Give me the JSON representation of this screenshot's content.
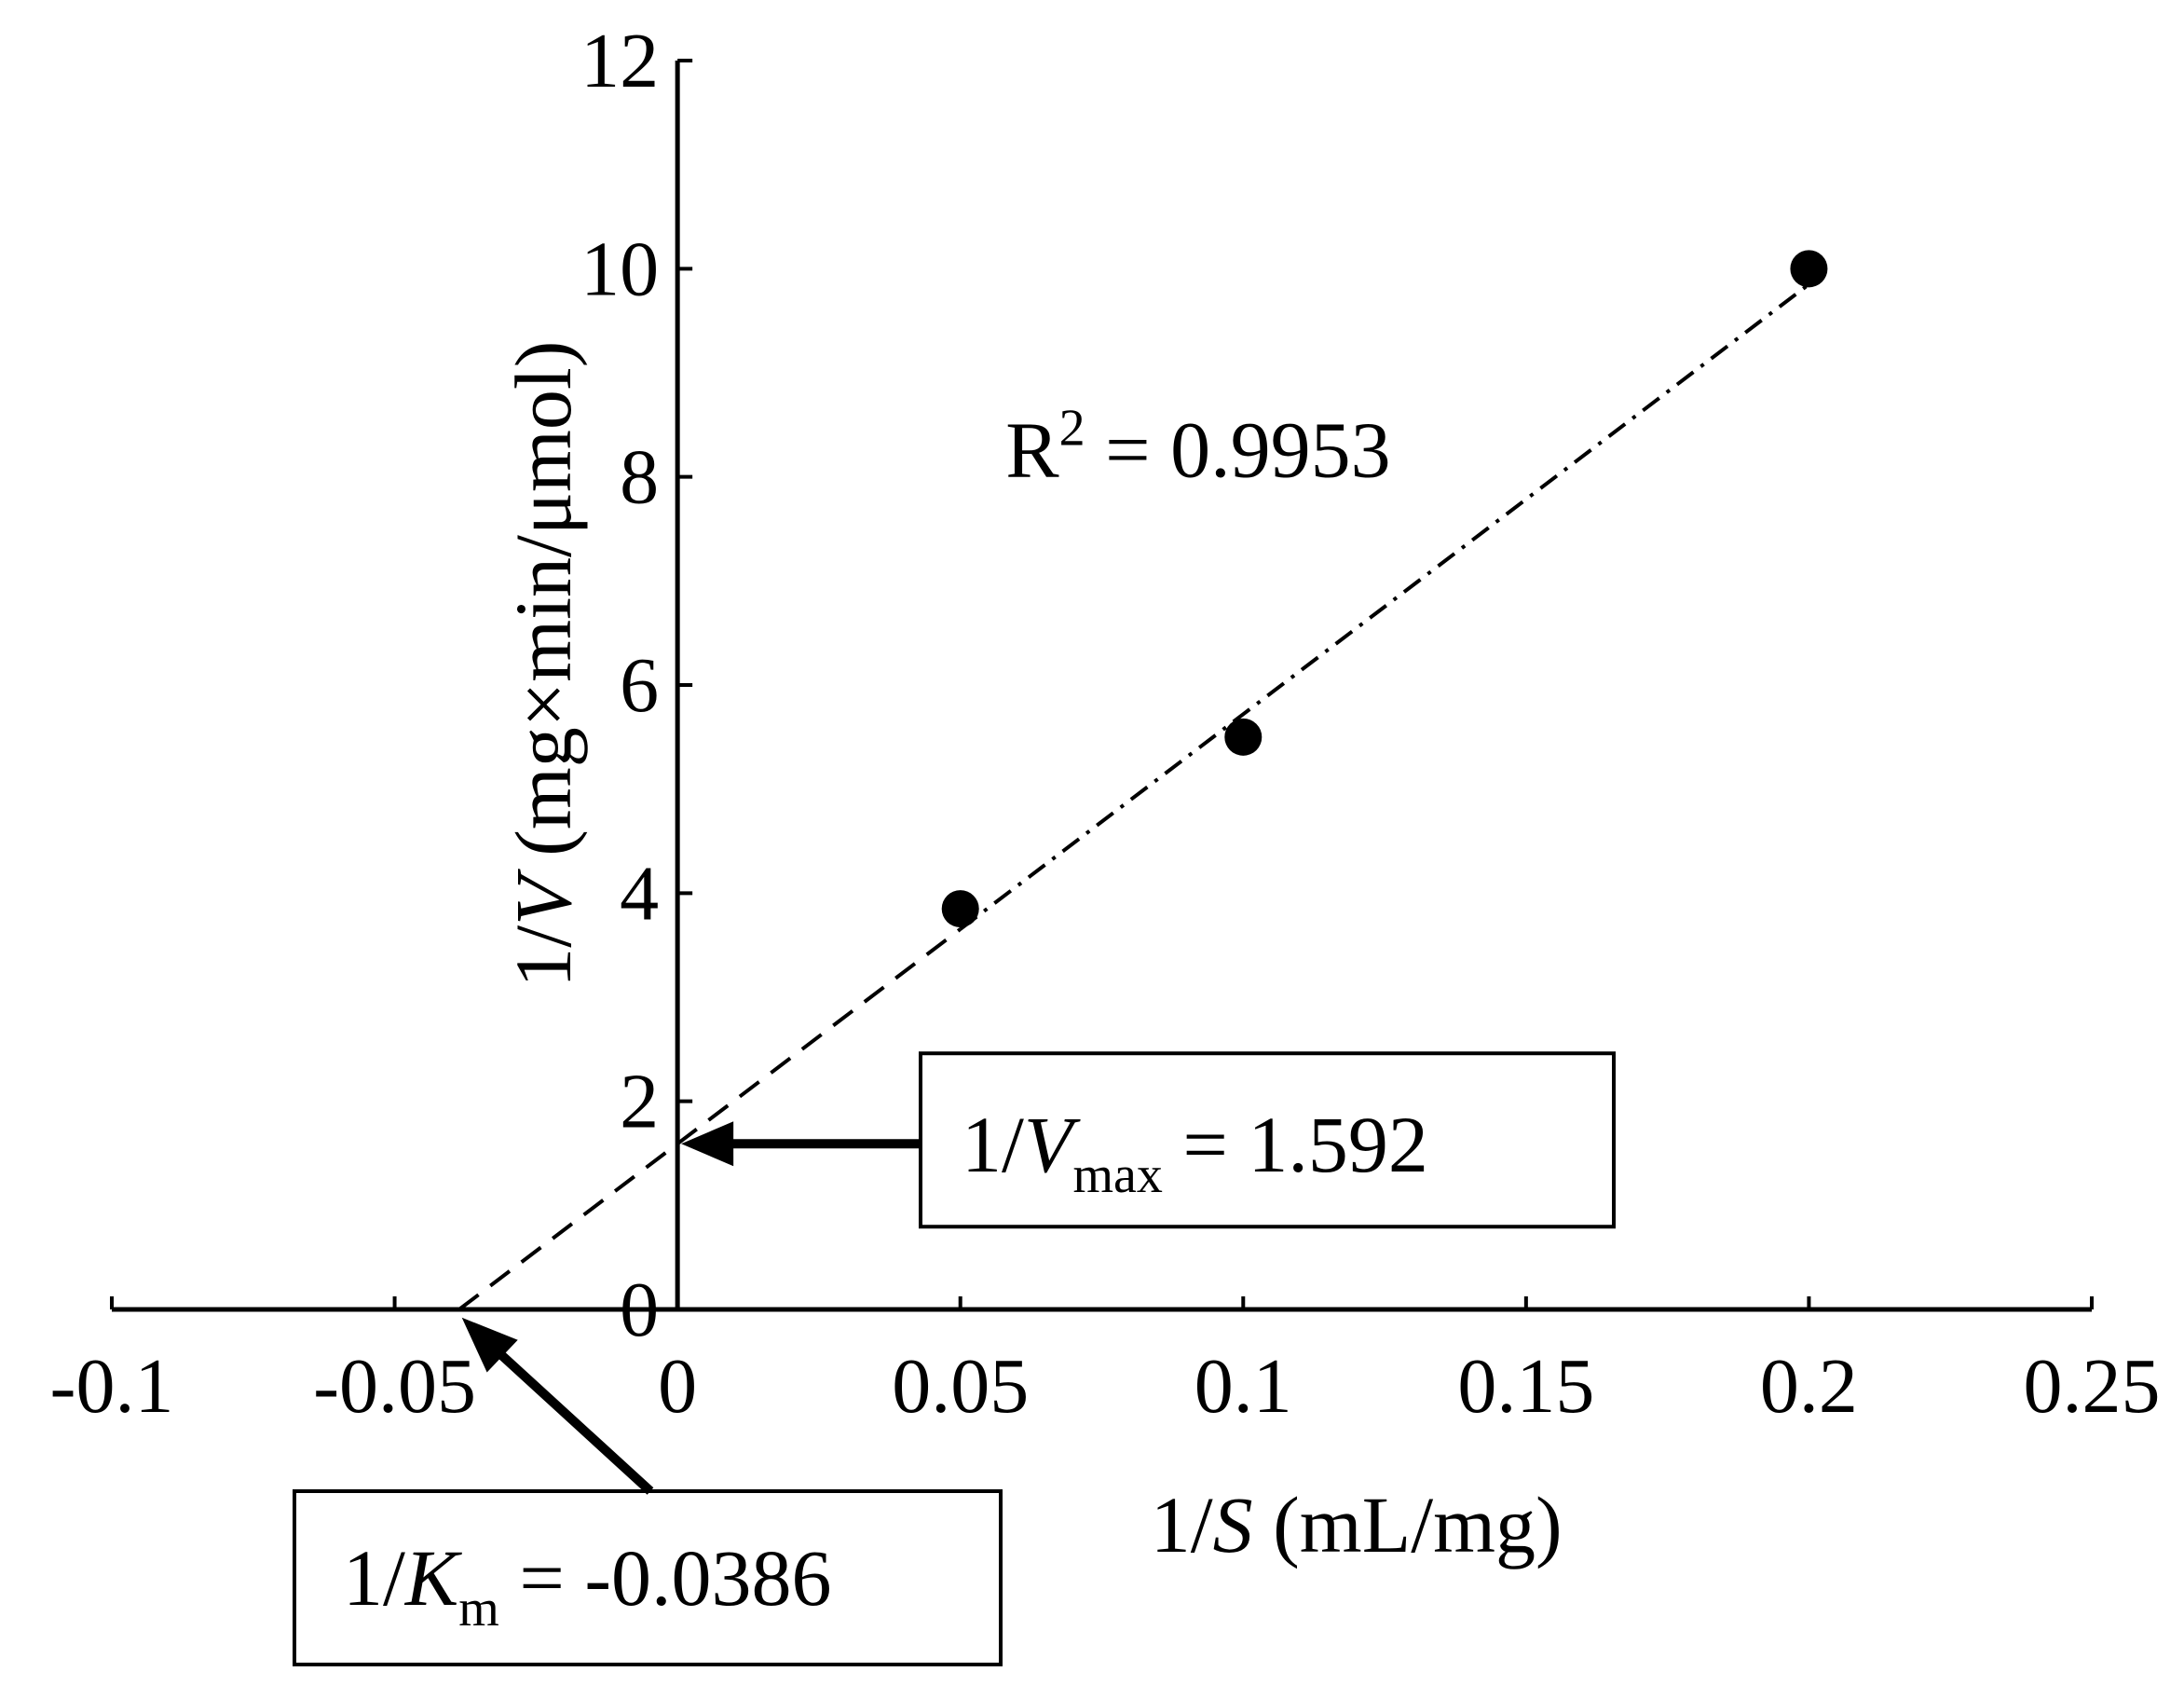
{
  "chart_data": {
    "type": "scatter",
    "title": "",
    "xlabel": {
      "prefix": "1/",
      "var": "S",
      "unit": " (mL/mg)"
    },
    "ylabel": {
      "prefix": "1/",
      "var": "V",
      "unit": " (mg×min/μmol)"
    },
    "xlim": [
      -0.1,
      0.25
    ],
    "ylim": [
      0,
      12
    ],
    "x_ticks": [
      -0.1,
      -0.05,
      0,
      0.05,
      0.1,
      0.15,
      0.2,
      0.25
    ],
    "x_tick_labels": [
      "-0.1",
      "-0.05",
      "0",
      "0.05",
      "0.1",
      "0.15",
      "0.2",
      "0.25"
    ],
    "y_ticks": [
      0,
      2,
      4,
      6,
      8,
      10,
      12
    ],
    "y_tick_labels": [
      "0",
      "2",
      "4",
      "6",
      "8",
      "10",
      "12"
    ],
    "grid": false,
    "points": [
      {
        "x": 0.05,
        "y": 3.85
      },
      {
        "x": 0.1,
        "y": 5.5
      },
      {
        "x": 0.2,
        "y": 10.0
      }
    ],
    "fit_line": {
      "x_intercept": -0.0386,
      "y_intercept": 1.592,
      "x_end": 0.2,
      "y_end": 9.85,
      "style": "dash-dot over data range, dashed extrapolation"
    },
    "annotations": {
      "r2": {
        "label": "R",
        "sup": "2",
        "text": " =  0.9953"
      },
      "vmax": {
        "prefix": "1/",
        "var": "V",
        "sub": "max",
        "text": " = 1.592"
      },
      "km": {
        "prefix": "1/",
        "var": "K",
        "sub": "m",
        "text": " = -0.0386"
      }
    }
  }
}
